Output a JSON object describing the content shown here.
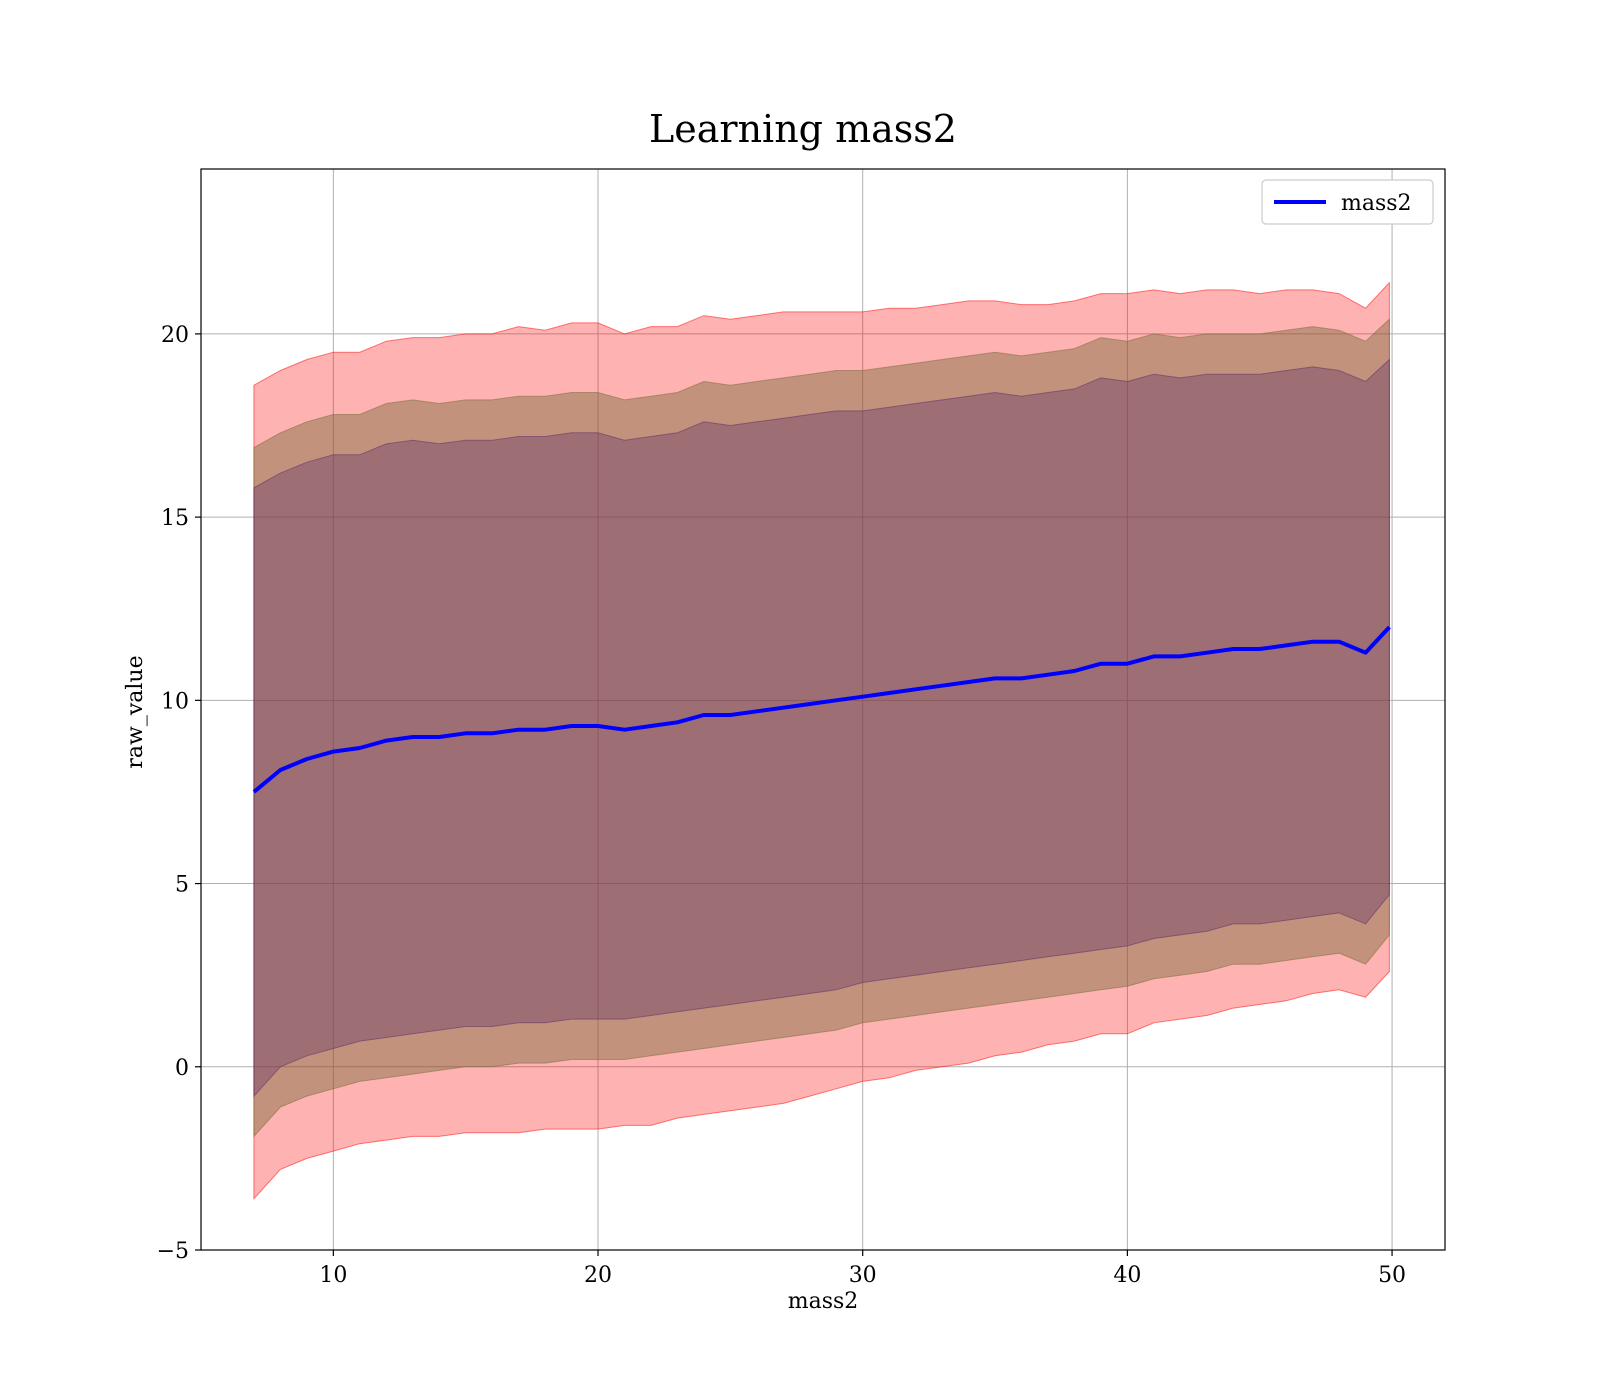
{
  "chart_data": {
    "type": "line",
    "title": "Learning mass2",
    "xlabel": "mass2",
    "ylabel": "raw_value",
    "xlim": [
      5,
      52
    ],
    "ylim": [
      -5,
      24.5
    ],
    "xticks": [
      10,
      20,
      30,
      40,
      50
    ],
    "yticks": [
      -5,
      0,
      5,
      10,
      15,
      20
    ],
    "grid": true,
    "legend": {
      "placement": "top-right",
      "entries": [
        "mass2"
      ]
    },
    "x": [
      7.0,
      8.0,
      9.0,
      10.0,
      11.0,
      12.0,
      13.0,
      14.0,
      15.0,
      16.0,
      17.0,
      18.0,
      19.0,
      20.0,
      21.0,
      22.0,
      23.0,
      24.0,
      25.0,
      26.0,
      27.0,
      28.0,
      29.0,
      30.0,
      31.0,
      32.0,
      33.0,
      34.0,
      35.0,
      36.0,
      37.0,
      38.0,
      39.0,
      40.0,
      41.0,
      42.0,
      43.0,
      44.0,
      45.0,
      46.0,
      47.0,
      48.0,
      49.0,
      49.9
    ],
    "series": [
      {
        "name": "mass2",
        "color": "#0000ff",
        "values": [
          7.5,
          8.1,
          8.4,
          8.6,
          8.7,
          8.9,
          9.0,
          9.0,
          9.1,
          9.1,
          9.2,
          9.2,
          9.3,
          9.3,
          9.2,
          9.3,
          9.4,
          9.6,
          9.6,
          9.7,
          9.8,
          9.9,
          10.0,
          10.1,
          10.2,
          10.3,
          10.4,
          10.5,
          10.6,
          10.6,
          10.7,
          10.8,
          11.0,
          11.0,
          11.2,
          11.2,
          11.3,
          11.4,
          11.4,
          11.5,
          11.6,
          11.6,
          11.3,
          12.0
        ]
      }
    ],
    "bands": [
      {
        "color": "#ff0000",
        "opacity": 0.3,
        "lower": [
          -3.6,
          -2.8,
          -2.5,
          -2.3,
          -2.1,
          -2.0,
          -1.9,
          -1.9,
          -1.8,
          -1.8,
          -1.8,
          -1.7,
          -1.7,
          -1.7,
          -1.6,
          -1.6,
          -1.4,
          -1.3,
          -1.2,
          -1.1,
          -1.0,
          -0.8,
          -0.6,
          -0.4,
          -0.3,
          -0.1,
          0.0,
          0.1,
          0.3,
          0.4,
          0.6,
          0.7,
          0.9,
          0.9,
          1.2,
          1.3,
          1.4,
          1.6,
          1.7,
          1.8,
          2.0,
          2.1,
          1.9,
          2.6
        ]
      },
      {
        "color": "#ff0000",
        "opacity": 0.3,
        "lower": [
          -1.9,
          -1.1,
          -0.8,
          -0.6,
          -0.4,
          -0.3,
          -0.2,
          -0.1,
          0.0,
          0.0,
          0.1,
          0.1,
          0.2,
          0.2,
          0.2,
          0.3,
          0.4,
          0.5,
          0.6,
          0.7,
          0.8,
          0.9,
          1.0,
          1.2,
          1.3,
          1.4,
          1.5,
          1.6,
          1.7,
          1.8,
          1.9,
          2.0,
          2.1,
          2.2,
          2.4,
          2.5,
          2.6,
          2.8,
          2.8,
          2.9,
          3.0,
          3.1,
          2.8,
          3.6
        ]
      }
    ]
  }
}
